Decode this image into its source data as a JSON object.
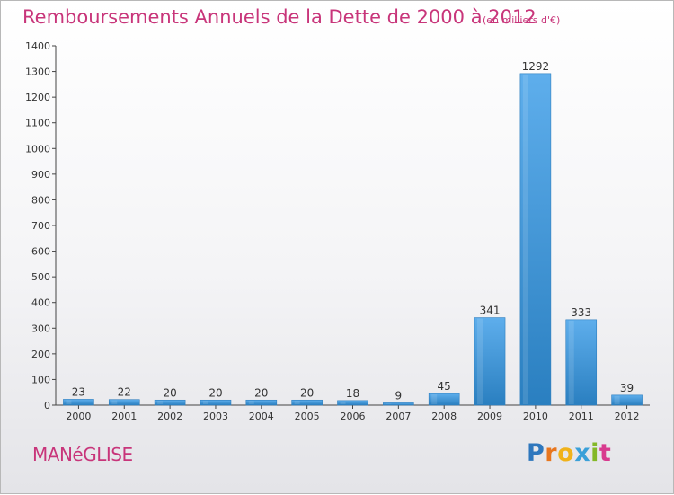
{
  "header": {
    "title": "Remboursements Annuels de la Dette de 2000 à 2012",
    "unit": "(en milliers d'€)"
  },
  "footer": {
    "commune": "MANéGLISE",
    "logo": "Proxiti"
  },
  "colors": {
    "title": "#c8357a",
    "bar_light": "#5aaaea",
    "bar_dark": "#2a7fc0"
  },
  "chart_data": {
    "type": "bar",
    "title": "Remboursements Annuels de la Dette de 2000 à 2012",
    "subtitle": "(en milliers d'€)",
    "xlabel": "",
    "ylabel": "",
    "categories": [
      "2000",
      "2001",
      "2002",
      "2003",
      "2004",
      "2005",
      "2006",
      "2007",
      "2008",
      "2009",
      "2010",
      "2011",
      "2012"
    ],
    "values": [
      23,
      22,
      20,
      20,
      20,
      20,
      18,
      9,
      45,
      341,
      1292,
      333,
      39
    ],
    "ylim": [
      0,
      1400
    ],
    "yticks": [
      0,
      100,
      200,
      300,
      400,
      500,
      600,
      700,
      800,
      900,
      1000,
      1100,
      1200,
      1300,
      1400
    ],
    "grid": false,
    "data_labels": true
  }
}
